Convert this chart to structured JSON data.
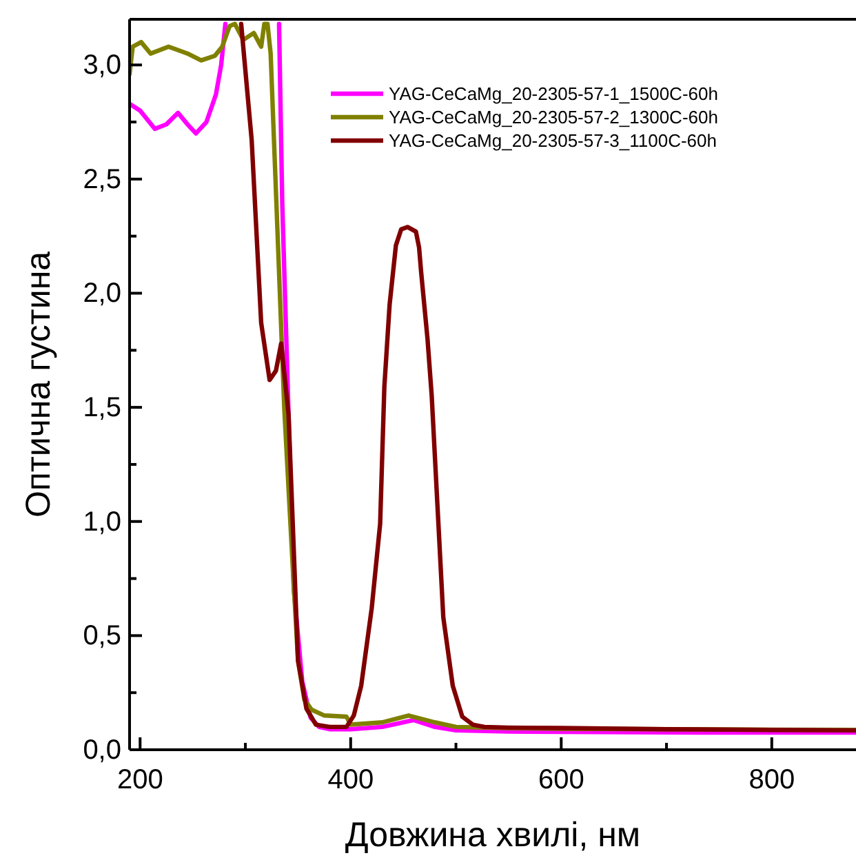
{
  "chart_data": {
    "type": "line",
    "xlabel": "Довжина хвилі, нм",
    "ylabel": "Оптична густина",
    "xlim": [
      190,
      880
    ],
    "ylim": [
      0,
      3.2
    ],
    "xticks": [
      200,
      {
        "value": 300,
        "label": null
      },
      400,
      {
        "value": 500,
        "label": null
      },
      600,
      {
        "value": 700,
        "label": null
      },
      800
    ],
    "yticks": [
      {
        "value": 0,
        "label": "0,0"
      },
      {
        "value": 0.25,
        "label": null
      },
      {
        "value": 0.5,
        "label": "0,5"
      },
      {
        "value": 0.75,
        "label": null
      },
      {
        "value": 1,
        "label": "1,0"
      },
      {
        "value": 1.25,
        "label": null
      },
      {
        "value": 1.5,
        "label": "1,5"
      },
      {
        "value": 1.75,
        "label": null
      },
      {
        "value": 2,
        "label": "2,0"
      },
      {
        "value": 2.25,
        "label": null
      },
      {
        "value": 2.5,
        "label": "2,5"
      },
      {
        "value": 2.75,
        "label": null
      },
      {
        "value": 3,
        "label": "3,0"
      }
    ],
    "legend": "top right",
    "grid": false,
    "line_style": "solid",
    "marker": "none",
    "series": [
      {
        "name": "YAG-CeCaMg_20-2305-57-1_1500C-60h",
        "color": "#ff00ff",
        "x": [
          190,
          200,
          214,
          225,
          236,
          245,
          253,
          263,
          272,
          277,
          281,
          285,
          332,
          335,
          346,
          354,
          362,
          370,
          380,
          400,
          430,
          460,
          480,
          500,
          550,
          600,
          700,
          800,
          880
        ],
        "values": [
          2.83,
          2.8,
          2.72,
          2.74,
          2.79,
          2.74,
          2.7,
          2.75,
          2.87,
          3.0,
          3.18,
          null,
          3.18,
          2.4,
          0.7,
          0.3,
          0.14,
          0.1,
          0.09,
          0.09,
          0.1,
          0.13,
          0.1,
          0.085,
          0.08,
          0.078,
          0.076,
          0.075,
          0.075
        ]
      },
      {
        "name": "YAG-CeCaMg_20-2305-57-2_1300C-60h",
        "color": "#808000",
        "x": [
          190,
          193,
          201,
          210,
          227,
          245,
          258,
          271,
          278,
          285,
          290,
          298,
          308,
          315,
          318,
          321,
          324,
          337,
          345,
          350,
          356,
          363,
          375,
          396,
          400,
          430,
          455,
          480,
          500,
          550,
          600,
          700,
          800,
          880
        ],
        "values": [
          2.96,
          3.08,
          3.1,
          3.05,
          3.08,
          3.05,
          3.02,
          3.04,
          3.08,
          3.17,
          3.18,
          3.11,
          3.14,
          3.08,
          3.18,
          3.18,
          3.05,
          1.49,
          0.8,
          0.39,
          0.22,
          0.175,
          0.15,
          0.145,
          0.11,
          0.12,
          0.15,
          0.12,
          0.1,
          0.095,
          0.092,
          0.09,
          0.088,
          0.087
        ]
      },
      {
        "name": "YAG-CeCaMg_20-2305-57-3_1100C-60h",
        "color": "#800000",
        "x": [
          296,
          306,
          315,
          323,
          329,
          334,
          341,
          350,
          358,
          367,
          380,
          396,
          403,
          410,
          420,
          428,
          432,
          437,
          443,
          448,
          454,
          462,
          465,
          467,
          473,
          477,
          488,
          497,
          506,
          516,
          527,
          550,
          600,
          700,
          800,
          880
        ],
        "values": [
          3.18,
          2.67,
          1.87,
          1.62,
          1.66,
          1.78,
          1.47,
          0.39,
          0.18,
          0.11,
          0.1,
          0.1,
          0.15,
          0.28,
          0.62,
          0.99,
          1.59,
          1.95,
          2.21,
          2.28,
          2.29,
          2.27,
          2.2,
          2.09,
          1.8,
          1.55,
          0.58,
          0.28,
          0.145,
          0.11,
          0.1,
          0.097,
          0.095,
          0.09,
          0.087,
          0.085
        ]
      }
    ]
  }
}
